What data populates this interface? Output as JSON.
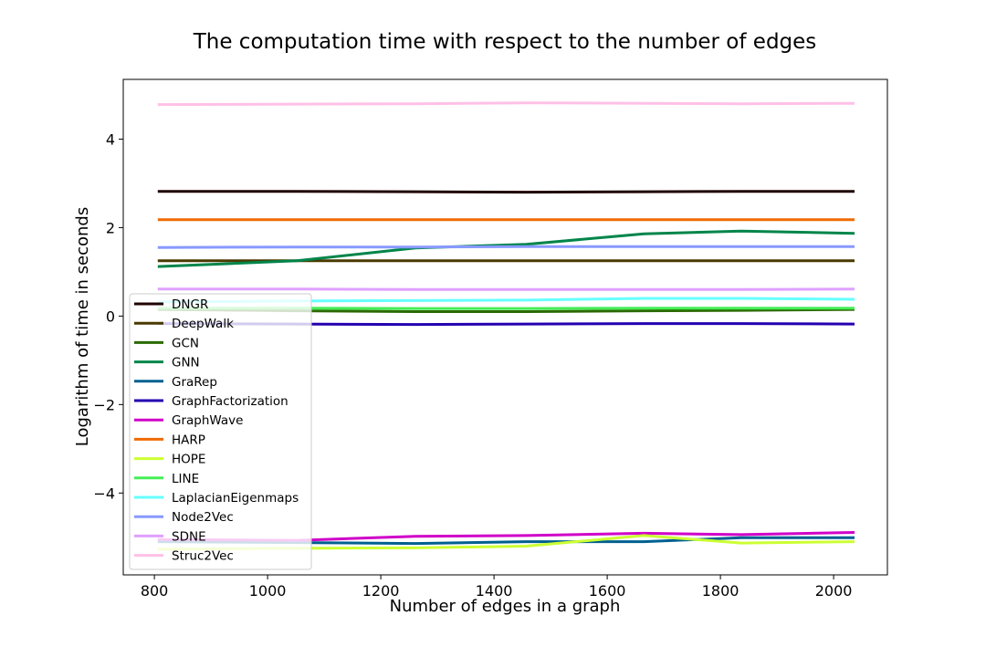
{
  "chart_data": {
    "type": "line",
    "title": "The computation time with respect to the number of edges",
    "xlabel": "Number of edges in a graph",
    "ylabel": "Logarithm of time in seconds",
    "xlim": [
      745,
      2095
    ],
    "ylim": [
      -5.85,
      5.35
    ],
    "xticks": [
      800,
      1000,
      1200,
      1400,
      1600,
      1800,
      2000
    ],
    "yticks": [
      -4,
      -2,
      0,
      2,
      4
    ],
    "xticklabels": [
      "800",
      "1000",
      "1200",
      "1400",
      "1600",
      "1800",
      "2000"
    ],
    "yticklabels": [
      "−4",
      "−2",
      "0",
      "2",
      "4"
    ],
    "grid": false,
    "legend_position": "lower-left",
    "x": [
      806,
      1052,
      1261,
      1457,
      1665,
      1837,
      2037
    ],
    "series": [
      {
        "name": "DNGR",
        "color": "#1f0000",
        "values": [
          2.82,
          2.82,
          2.81,
          2.8,
          2.81,
          2.82,
          2.82
        ]
      },
      {
        "name": "DeepWalk",
        "color": "#4a3a00",
        "values": [
          1.25,
          1.25,
          1.25,
          1.25,
          1.25,
          1.25,
          1.25
        ]
      },
      {
        "name": "GCN",
        "color": "#2a6a00",
        "values": [
          0.15,
          0.12,
          0.1,
          0.1,
          0.12,
          0.13,
          0.15
        ]
      },
      {
        "name": "GNN",
        "color": "#00854a",
        "values": [
          1.12,
          1.25,
          1.54,
          1.62,
          1.86,
          1.92,
          1.87
        ]
      },
      {
        "name": "GraRep",
        "color": "#00608f",
        "values": [
          -5.1,
          -5.12,
          -5.14,
          -5.1,
          -5.1,
          -5.01,
          -5.01
        ]
      },
      {
        "name": "GraphFactorization",
        "color": "#2400b0",
        "values": [
          -0.17,
          -0.18,
          -0.19,
          -0.18,
          -0.17,
          -0.17,
          -0.18
        ]
      },
      {
        "name": "GraphWave",
        "color": "#d000c8",
        "values": [
          -5.05,
          -5.07,
          -4.98,
          -4.96,
          -4.91,
          -4.94,
          -4.89
        ]
      },
      {
        "name": "HARP",
        "color": "#f06a00",
        "values": [
          2.18,
          2.18,
          2.18,
          2.18,
          2.18,
          2.18,
          2.18
        ]
      },
      {
        "name": "HOPE",
        "color": "#ccff33",
        "values": [
          -5.27,
          -5.25,
          -5.24,
          -5.2,
          -4.96,
          -5.13,
          -5.1
        ]
      },
      {
        "name": "LINE",
        "color": "#44ee55",
        "values": [
          0.18,
          0.18,
          0.17,
          0.17,
          0.18,
          0.18,
          0.18
        ]
      },
      {
        "name": "LaplacianEigenmaps",
        "color": "#66ffff",
        "values": [
          0.32,
          0.34,
          0.35,
          0.36,
          0.4,
          0.4,
          0.38
        ]
      },
      {
        "name": "Node2Vec",
        "color": "#8899ff",
        "values": [
          1.55,
          1.56,
          1.56,
          1.57,
          1.57,
          1.57,
          1.57
        ]
      },
      {
        "name": "SDNE",
        "color": "#e0a0ff",
        "values": [
          0.61,
          0.61,
          0.6,
          0.6,
          0.6,
          0.6,
          0.61
        ]
      },
      {
        "name": "Struc2Vec",
        "color": "#ffc0e6",
        "values": [
          4.78,
          4.79,
          4.8,
          4.82,
          4.81,
          4.8,
          4.81
        ]
      }
    ]
  }
}
